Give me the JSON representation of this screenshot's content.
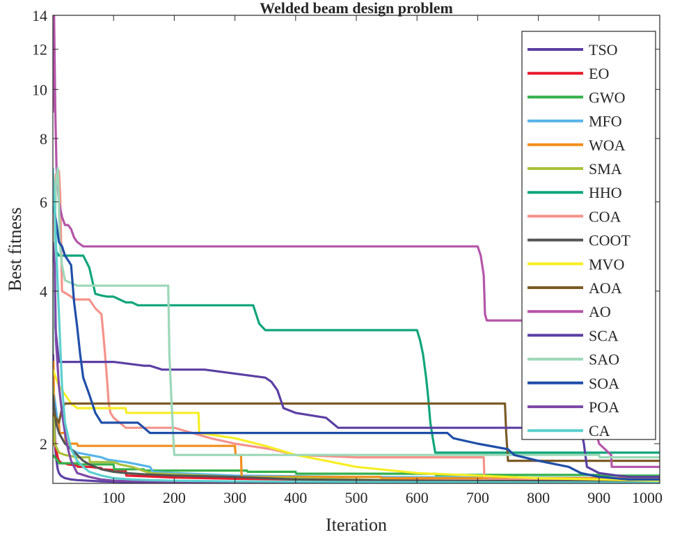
{
  "chart_data": {
    "type": "line",
    "title": "Welded beam design problem",
    "xlabel": "Iteration",
    "ylabel": "Best fitness",
    "yscale": "log",
    "xlim": [
      0,
      1000
    ],
    "ylim": [
      1.67,
      14
    ],
    "xticks": [
      100,
      200,
      300,
      400,
      500,
      600,
      700,
      800,
      900,
      1000
    ],
    "yticks": [
      2,
      4,
      6,
      8,
      10,
      12,
      14
    ],
    "legend_position": "top-right",
    "series": [
      {
        "name": "TSO",
        "color": "#5b3fa3",
        "x": [
          0,
          2,
          4,
          6,
          8,
          10,
          13,
          16,
          20,
          25,
          30,
          40,
          60,
          80,
          100,
          130,
          160,
          200,
          300,
          400,
          600,
          800,
          1000
        ],
        "y": [
          3.2,
          2.3,
          1.95,
          1.85,
          1.78,
          1.75,
          1.73,
          1.72,
          1.71,
          1.705,
          1.7,
          1.695,
          1.69,
          1.685,
          1.682,
          1.68,
          1.679,
          1.678,
          1.677,
          1.676,
          1.675,
          1.674,
          1.673
        ]
      },
      {
        "name": "EO",
        "color": "#e8192c",
        "x": [
          0,
          5,
          8,
          10,
          15,
          20,
          25,
          40,
          41,
          60,
          80,
          81,
          120,
          121,
          200,
          300,
          400,
          500,
          700,
          1000
        ],
        "y": [
          2.2,
          1.95,
          1.88,
          1.85,
          1.83,
          1.83,
          1.82,
          1.81,
          1.8,
          1.8,
          1.79,
          1.78,
          1.77,
          1.73,
          1.715,
          1.705,
          1.7,
          1.695,
          1.69,
          1.688
        ]
      },
      {
        "name": "GWO",
        "color": "#33b14a",
        "x": [
          0,
          8,
          10,
          40,
          41,
          100,
          101,
          150,
          151,
          320,
          321,
          400,
          401,
          630,
          631,
          900,
          901,
          1000
        ],
        "y": [
          1.9,
          1.85,
          1.83,
          1.83,
          1.82,
          1.82,
          1.78,
          1.78,
          1.77,
          1.77,
          1.76,
          1.76,
          1.745,
          1.745,
          1.735,
          1.735,
          1.73,
          1.73
        ]
      },
      {
        "name": "MFO",
        "color": "#56b4e9",
        "x": [
          0,
          8,
          10,
          20,
          30,
          40,
          60,
          80,
          90,
          120,
          140,
          160,
          165,
          200,
          300,
          500,
          700,
          1000
        ],
        "y": [
          2.6,
          2.2,
          2.1,
          2.0,
          1.95,
          1.92,
          1.9,
          1.88,
          1.86,
          1.84,
          1.82,
          1.8,
          1.76,
          1.75,
          1.73,
          1.72,
          1.715,
          1.71
        ]
      },
      {
        "name": "WOA",
        "color": "#f28e1c",
        "x": [
          0,
          1,
          2,
          10,
          11,
          20,
          21,
          40,
          41,
          300,
          301,
          310,
          311,
          540,
          541,
          1000
        ],
        "y": [
          1.98,
          2.9,
          2.2,
          2.2,
          2.1,
          2.1,
          2.0,
          2.0,
          1.98,
          1.98,
          1.9,
          1.9,
          1.72,
          1.72,
          1.71,
          1.71
        ]
      },
      {
        "name": "SMA",
        "color": "#a7c13b",
        "x": [
          0,
          3,
          10,
          20,
          40,
          60,
          61,
          100,
          110,
          130,
          160,
          200,
          300,
          400,
          500,
          600,
          800,
          1000
        ],
        "y": [
          2.6,
          2.0,
          1.92,
          1.9,
          1.88,
          1.88,
          1.84,
          1.84,
          1.82,
          1.8,
          1.75,
          1.74,
          1.72,
          1.71,
          1.7,
          1.69,
          1.685,
          1.68
        ]
      },
      {
        "name": "HHO",
        "color": "#0fa57b",
        "x": [
          0,
          3,
          5,
          10,
          15,
          20,
          50,
          60,
          70,
          80,
          90,
          100,
          110,
          120,
          130,
          140,
          330,
          340,
          350,
          600,
          605,
          610,
          615,
          618,
          622,
          626,
          630,
          1000
        ],
        "y": [
          6.5,
          5.2,
          4.8,
          4.7,
          4.7,
          4.7,
          4.7,
          4.45,
          3.95,
          3.92,
          3.9,
          3.9,
          3.85,
          3.8,
          3.8,
          3.75,
          3.75,
          3.45,
          3.35,
          3.35,
          3.2,
          3.0,
          2.7,
          2.5,
          2.2,
          2.05,
          1.92,
          1.92
        ]
      },
      {
        "name": "COA",
        "color": "#f4938b",
        "x": [
          0,
          3,
          5,
          10,
          12,
          15,
          30,
          35,
          60,
          70,
          80,
          82,
          85,
          88,
          90,
          92,
          95,
          100,
          110,
          120,
          130,
          200,
          260,
          300,
          360,
          400,
          500,
          710,
          711,
          720,
          721,
          1000
        ],
        "y": [
          4.5,
          6.0,
          6.8,
          6.9,
          6.2,
          4.0,
          3.9,
          3.85,
          3.85,
          3.7,
          3.6,
          3.4,
          3.1,
          2.8,
          2.6,
          2.4,
          2.3,
          2.25,
          2.2,
          2.15,
          2.15,
          2.15,
          2.05,
          2.0,
          1.95,
          1.9,
          1.88,
          1.88,
          1.72,
          1.72,
          1.7,
          1.7
        ]
      },
      {
        "name": "COOT",
        "color": "#555555",
        "x": [
          0,
          5,
          10,
          20,
          30,
          40,
          50,
          60,
          70,
          80,
          100,
          120,
          150,
          200,
          300,
          350,
          400,
          500,
          600,
          800,
          1000
        ],
        "y": [
          2.5,
          2.2,
          2.1,
          2.0,
          1.95,
          1.9,
          1.85,
          1.82,
          1.8,
          1.78,
          1.76,
          1.75,
          1.74,
          1.73,
          1.72,
          1.71,
          1.7,
          1.695,
          1.69,
          1.688,
          1.685
        ]
      },
      {
        "name": "MVO",
        "color": "#f6ee24",
        "x": [
          0,
          10,
          20,
          30,
          40,
          50,
          80,
          120,
          121,
          170,
          171,
          240,
          241,
          300,
          350,
          400,
          450,
          500,
          600,
          700,
          800,
          900,
          1000
        ],
        "y": [
          2.8,
          2.6,
          2.5,
          2.4,
          2.35,
          2.35,
          2.35,
          2.35,
          2.3,
          2.3,
          2.3,
          2.3,
          2.1,
          2.05,
          1.98,
          1.9,
          1.85,
          1.8,
          1.75,
          1.73,
          1.71,
          1.7,
          1.69
        ]
      },
      {
        "name": "AOA",
        "color": "#7b5b26",
        "x": [
          0,
          10,
          15,
          20,
          30,
          40,
          100,
          300,
          500,
          700,
          745,
          747,
          750,
          1000
        ],
        "y": [
          2.3,
          2.2,
          2.35,
          2.4,
          2.4,
          2.4,
          2.4,
          2.4,
          2.4,
          2.4,
          2.4,
          2.1,
          1.85,
          1.85
        ]
      },
      {
        "name": "AO",
        "color": "#b455a8",
        "x": [
          0,
          2,
          4,
          6,
          8,
          10,
          15,
          20,
          25,
          30,
          35,
          40,
          45,
          50,
          60,
          80,
          100,
          200,
          300,
          400,
          500,
          600,
          700,
          705,
          710,
          712,
          715,
          800,
          850,
          870,
          880,
          900,
          920,
          921,
          1000
        ],
        "y": [
          9.0,
          14.0,
          9.0,
          7.0,
          6.5,
          6.0,
          5.6,
          5.4,
          5.4,
          5.3,
          5.1,
          5.0,
          4.95,
          4.9,
          4.9,
          4.9,
          4.9,
          4.9,
          4.9,
          4.9,
          4.9,
          4.9,
          4.9,
          4.7,
          4.3,
          3.6,
          3.5,
          3.5,
          3.5,
          3.0,
          2.5,
          2.0,
          1.9,
          1.8,
          1.8
        ]
      },
      {
        "name": "SCA",
        "color": "#5b3fa3",
        "x": [
          0,
          5,
          10,
          20,
          30,
          60,
          100,
          150,
          160,
          180,
          200,
          250,
          300,
          350,
          360,
          370,
          380,
          400,
          450,
          460,
          470,
          500,
          700,
          705,
          720,
          800,
          870,
          875,
          880,
          900,
          930,
          950,
          1000
        ],
        "y": [
          3.9,
          3.3,
          2.9,
          2.9,
          2.9,
          2.9,
          2.9,
          2.85,
          2.85,
          2.8,
          2.8,
          2.8,
          2.75,
          2.7,
          2.65,
          2.55,
          2.35,
          2.3,
          2.25,
          2.2,
          2.15,
          2.15,
          2.15,
          2.15,
          2.15,
          2.15,
          2.15,
          2.0,
          1.8,
          1.75,
          1.73,
          1.72,
          1.72
        ]
      },
      {
        "name": "SAO",
        "color": "#9cd8b8",
        "x": [
          0,
          2,
          5,
          8,
          10,
          11,
          15,
          20,
          30,
          40,
          60,
          100,
          150,
          190,
          191,
          192,
          195,
          198,
          200,
          250,
          300,
          400,
          500,
          600,
          700,
          800,
          900,
          901,
          1000
        ],
        "y": [
          3.0,
          4.5,
          6.5,
          7.0,
          6.0,
          5.0,
          4.5,
          4.2,
          4.15,
          4.1,
          4.1,
          4.1,
          4.1,
          4.1,
          3.5,
          3.0,
          2.5,
          2.1,
          1.9,
          1.9,
          1.9,
          1.9,
          1.9,
          1.9,
          1.9,
          1.9,
          1.9,
          1.88,
          1.88
        ]
      },
      {
        "name": "SOA",
        "color": "#1f4ea8",
        "x": [
          0,
          5,
          10,
          15,
          20,
          25,
          30,
          35,
          40,
          45,
          50,
          60,
          70,
          80,
          100,
          140,
          150,
          160,
          200,
          300,
          400,
          600,
          650,
          660,
          700,
          750,
          760,
          800,
          850,
          870,
          900,
          950,
          1000
        ],
        "y": [
          6.0,
          5.5,
          5.0,
          4.9,
          4.7,
          4.6,
          4.5,
          3.8,
          3.4,
          3.0,
          2.7,
          2.5,
          2.3,
          2.2,
          2.2,
          2.2,
          2.15,
          2.1,
          2.1,
          2.1,
          2.1,
          2.1,
          2.1,
          2.05,
          2.0,
          1.95,
          1.9,
          1.85,
          1.8,
          1.75,
          1.72,
          1.7,
          1.7
        ]
      },
      {
        "name": "POA",
        "color": "#7e4aa8",
        "x": [
          0,
          3,
          5,
          10,
          15,
          20,
          25,
          30,
          40,
          60,
          80,
          100,
          150,
          200,
          300,
          400,
          500,
          600,
          700,
          800,
          1000
        ],
        "y": [
          5.0,
          4.5,
          3.2,
          2.6,
          2.3,
          2.1,
          1.95,
          1.85,
          1.75,
          1.72,
          1.7,
          1.69,
          1.685,
          1.68,
          1.678,
          1.676,
          1.675,
          1.674,
          1.673,
          1.672,
          1.671
        ]
      },
      {
        "name": "CA",
        "color": "#5ccfcf",
        "x": [
          0,
          5,
          10,
          15,
          20,
          30,
          40,
          50,
          60,
          80,
          100,
          130,
          160,
          200,
          300,
          400,
          500,
          600,
          700,
          800,
          900,
          1000
        ],
        "y": [
          7.0,
          5.0,
          3.6,
          2.6,
          2.2,
          1.95,
          1.85,
          1.8,
          1.76,
          1.73,
          1.71,
          1.7,
          1.695,
          1.69,
          1.685,
          1.682,
          1.68,
          1.679,
          1.678,
          1.677,
          1.676,
          1.675
        ]
      }
    ]
  }
}
